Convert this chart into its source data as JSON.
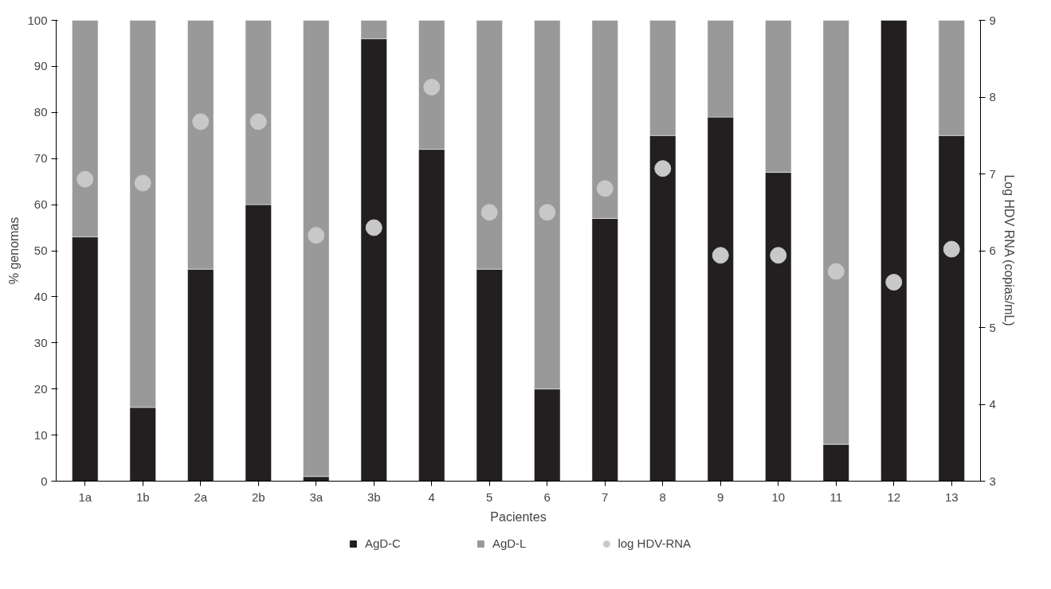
{
  "chart_data": {
    "type": "bar",
    "stacked": true,
    "xlabel": "Pacientes",
    "ylabel": "% genomas",
    "y2label": "Log HDV RNA (copias/mL)",
    "categories": [
      "1a",
      "1b",
      "2a",
      "2b",
      "3a",
      "3b",
      "4",
      "5",
      "6",
      "7",
      "8",
      "9",
      "10",
      "11",
      "12",
      "13"
    ],
    "series": [
      {
        "name": "AgD-C",
        "color": "#231f20",
        "values": [
          53,
          16,
          46,
          60,
          1,
          96,
          72,
          46,
          20,
          57,
          75,
          79,
          67,
          8,
          100,
          75
        ]
      },
      {
        "name": "AgD-L",
        "color": "#999999",
        "values": [
          47,
          84,
          54,
          40,
          99,
          4,
          28,
          54,
          80,
          43,
          25,
          21,
          33,
          92,
          0,
          25
        ]
      },
      {
        "name": "log HDV-RNA",
        "type": "scatter",
        "axis": "y2",
        "color": "#c8c8c8",
        "values": [
          6.93,
          6.88,
          7.68,
          7.68,
          6.2,
          6.3,
          8.13,
          6.5,
          6.5,
          6.81,
          7.07,
          5.94,
          5.94,
          5.73,
          5.59,
          6.02
        ]
      }
    ],
    "ylim": [
      0,
      100
    ],
    "yticks": [
      0,
      10,
      20,
      30,
      40,
      50,
      60,
      70,
      80,
      90,
      100
    ],
    "y2lim": [
      3,
      9
    ],
    "y2ticks": [
      3,
      4,
      5,
      6,
      7,
      8,
      9
    ],
    "grid": false,
    "legend": "bottom",
    "marker": "circle"
  }
}
